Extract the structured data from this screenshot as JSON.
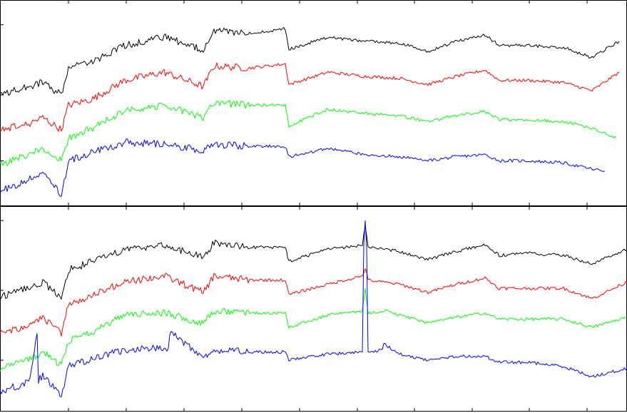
{
  "chart_data": [
    {
      "type": "line",
      "panel": "top",
      "title": "",
      "xlabel": "",
      "ylabel": "",
      "xlim": [
        0,
        879
      ],
      "ylim": [
        0,
        10
      ],
      "xticks": [
        96,
        177,
        258,
        339,
        420,
        501,
        581,
        662,
        742,
        823
      ],
      "yticks": [
        2.2,
        5.4,
        8.8
      ],
      "grid": false,
      "legend": "none",
      "series": [
        {
          "color": "#000000",
          "x": [
            0,
            40,
            60,
            86,
            96,
            130,
            175,
            230,
            285,
            300,
            350,
            400,
            405,
            460,
            510,
            560,
            600,
            640,
            680,
            700,
            740,
            790,
            830,
            868
          ],
          "y": [
            5.4,
            5.8,
            6.0,
            5.4,
            6.7,
            7.0,
            7.8,
            8.2,
            7.6,
            8.5,
            8.4,
            8.6,
            7.6,
            8.2,
            8.0,
            7.9,
            7.5,
            8.0,
            8.3,
            7.8,
            7.8,
            7.7,
            7.2,
            8.0
          ]
        },
        {
          "color": "#ff0000",
          "x": [
            0,
            40,
            60,
            86,
            96,
            130,
            175,
            230,
            285,
            300,
            350,
            400,
            405,
            460,
            510,
            560,
            600,
            640,
            680,
            700,
            740,
            790,
            830,
            868
          ],
          "y": [
            3.7,
            4.0,
            4.3,
            3.7,
            4.9,
            5.2,
            6.1,
            6.5,
            5.8,
            6.8,
            6.7,
            6.9,
            5.9,
            6.5,
            6.3,
            6.2,
            5.9,
            6.3,
            6.6,
            6.1,
            6.1,
            6.0,
            5.6,
            6.5
          ]
        },
        {
          "color": "#00ff00",
          "x": [
            0,
            40,
            60,
            86,
            96,
            130,
            175,
            230,
            285,
            300,
            350,
            400,
            405,
            460,
            510,
            560,
            600,
            640,
            680,
            700,
            740,
            790,
            830,
            864
          ],
          "y": [
            2.0,
            2.5,
            2.8,
            2.2,
            3.3,
            3.8,
            4.6,
            4.9,
            4.3,
            5.0,
            4.9,
            4.9,
            3.9,
            4.7,
            4.5,
            4.4,
            4.1,
            4.4,
            4.6,
            4.2,
            4.2,
            4.1,
            3.8,
            3.3
          ]
        },
        {
          "color": "#0000ff",
          "x": [
            0,
            40,
            60,
            86,
            96,
            130,
            175,
            230,
            285,
            300,
            350,
            400,
            405,
            460,
            510,
            560,
            600,
            640,
            680,
            700,
            740,
            790,
            830,
            848
          ],
          "y": [
            0.7,
            1.3,
            1.7,
            0.5,
            2.2,
            2.6,
            3.1,
            3.0,
            2.7,
            3.0,
            2.9,
            2.9,
            2.4,
            2.8,
            2.5,
            2.4,
            2.2,
            2.4,
            2.5,
            2.2,
            2.2,
            2.1,
            1.8,
            1.7
          ]
        }
      ]
    },
    {
      "type": "line",
      "panel": "bottom",
      "title": "",
      "xlabel": "",
      "ylabel": "",
      "xlim": [
        0,
        879
      ],
      "ylim": [
        0,
        10
      ],
      "xticks": [
        96,
        177,
        258,
        339,
        420,
        501,
        581,
        662,
        742,
        823
      ],
      "yticks": [
        2.5,
        5.9,
        9.3
      ],
      "grid": false,
      "legend": "none",
      "series": [
        {
          "color": "#000000",
          "x": [
            0,
            40,
            60,
            86,
            96,
            130,
            175,
            230,
            285,
            300,
            350,
            400,
            405,
            460,
            508,
            512,
            516,
            560,
            600,
            640,
            680,
            700,
            740,
            790,
            830,
            879
          ],
          "y": [
            5.6,
            6.0,
            6.3,
            5.5,
            6.9,
            7.3,
            7.9,
            8.1,
            7.5,
            8.2,
            8.0,
            8.0,
            7.3,
            7.9,
            8.1,
            9.1,
            8.0,
            7.8,
            7.4,
            7.8,
            8.1,
            7.6,
            7.7,
            7.6,
            7.2,
            7.9
          ]
        },
        {
          "color": "#ff0000",
          "x": [
            0,
            40,
            60,
            86,
            96,
            130,
            175,
            230,
            285,
            300,
            350,
            400,
            405,
            460,
            508,
            512,
            516,
            560,
            600,
            640,
            680,
            700,
            740,
            790,
            830,
            879
          ],
          "y": [
            3.8,
            4.2,
            4.6,
            3.8,
            5.2,
            5.7,
            6.3,
            6.6,
            5.8,
            6.6,
            6.4,
            6.4,
            5.7,
            6.2,
            6.6,
            7.0,
            6.4,
            6.2,
            5.8,
            6.2,
            6.5,
            6.0,
            6.0,
            6.0,
            5.5,
            6.3
          ]
        },
        {
          "color": "#00ff00",
          "x": [
            0,
            40,
            60,
            86,
            96,
            130,
            175,
            230,
            285,
            300,
            350,
            400,
            405,
            460,
            508,
            512,
            516,
            540,
            560,
            600,
            640,
            680,
            700,
            740,
            790,
            830,
            879
          ],
          "y": [
            2.1,
            2.5,
            2.9,
            2.2,
            3.4,
            3.9,
            4.7,
            4.8,
            4.3,
            4.9,
            4.8,
            4.8,
            4.1,
            4.7,
            4.9,
            6.0,
            4.8,
            4.9,
            4.7,
            4.3,
            4.6,
            4.8,
            4.5,
            4.5,
            4.5,
            4.1,
            4.6
          ]
        },
        {
          "color": "#0000ff",
          "x": [
            0,
            40,
            52,
            54,
            60,
            86,
            96,
            130,
            175,
            236,
            238,
            285,
            300,
            350,
            400,
            405,
            460,
            508,
            510,
            512,
            514,
            516,
            536,
            538,
            560,
            600,
            640,
            680,
            700,
            740,
            790,
            830,
            879
          ],
          "y": [
            1.0,
            1.4,
            3.8,
            1.5,
            1.8,
            0.7,
            2.2,
            2.6,
            3.0,
            3.1,
            3.9,
            2.6,
            3.0,
            2.9,
            2.9,
            2.5,
            2.8,
            2.9,
            8.2,
            9.3,
            8.0,
            2.9,
            3.0,
            3.3,
            2.8,
            2.5,
            2.7,
            2.7,
            2.4,
            2.4,
            2.2,
            1.7,
            2.1
          ]
        }
      ]
    }
  ]
}
